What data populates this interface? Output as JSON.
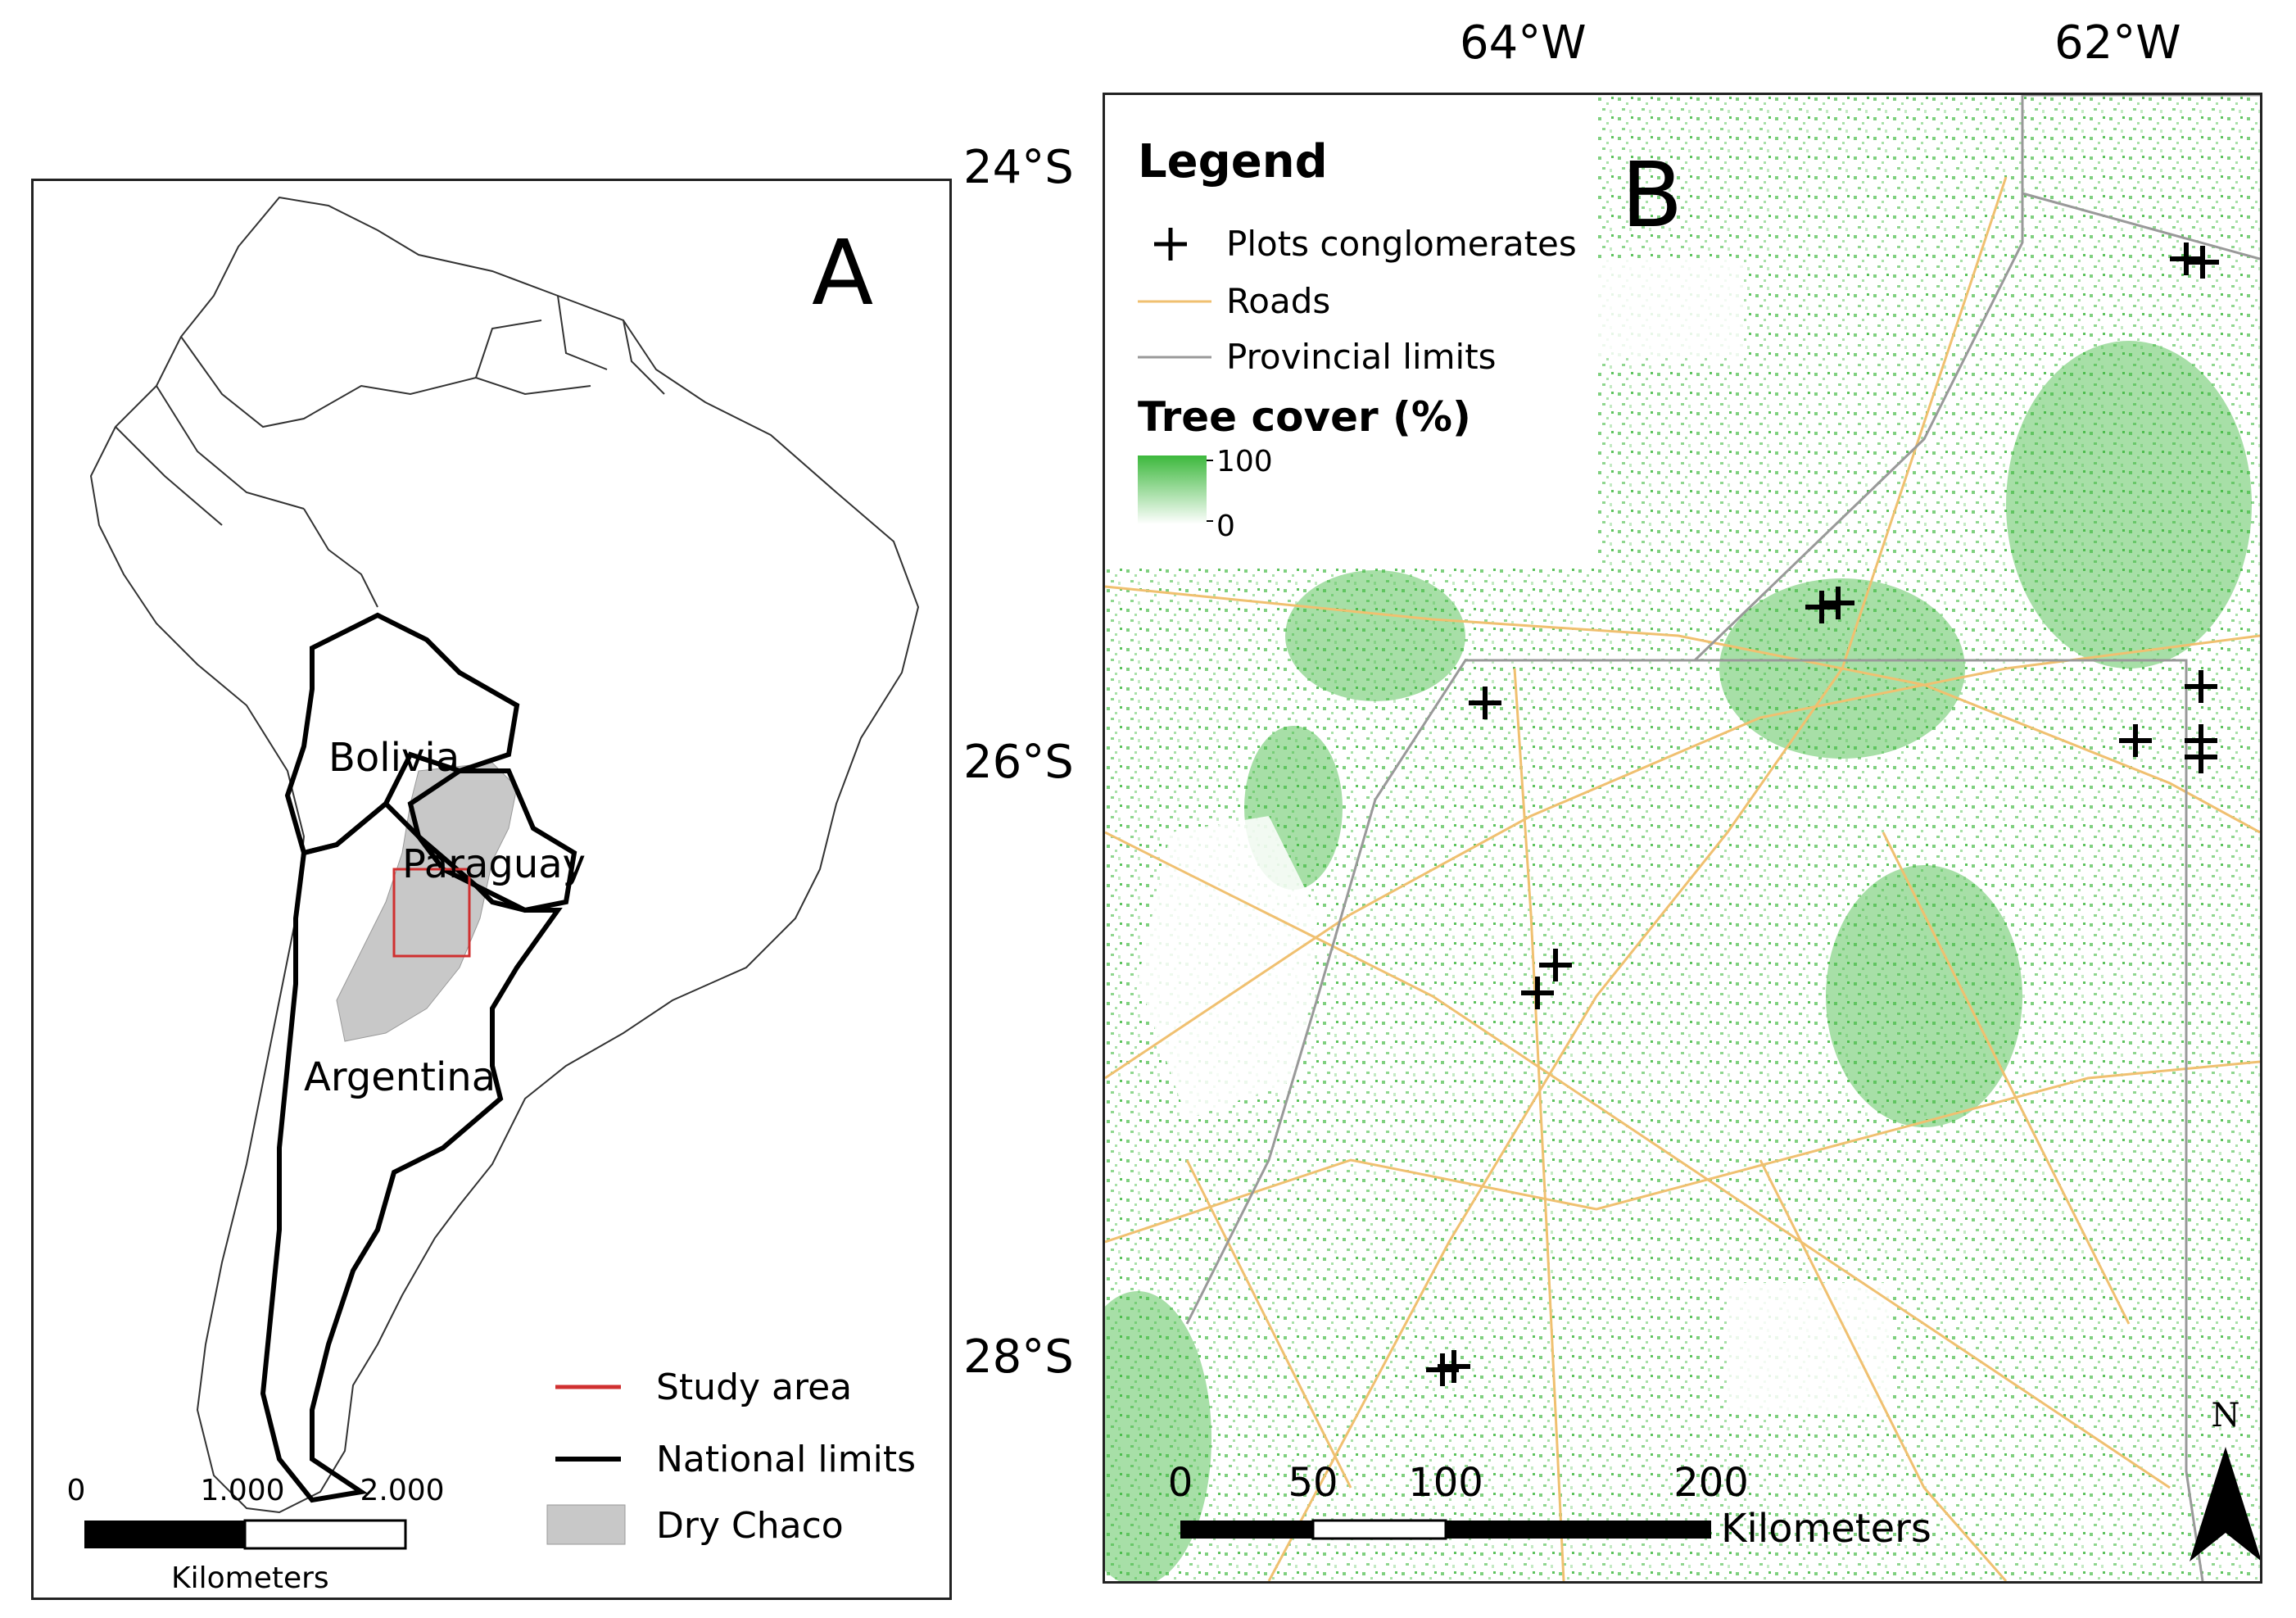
{
  "panel_a": {
    "letter": "A",
    "countries": [
      "Bolivia",
      "Paraguay",
      "Argentina"
    ],
    "legend": {
      "items": [
        {
          "label": "Study area",
          "color": "#d03030"
        },
        {
          "label": "National limits",
          "color": "#000000"
        },
        {
          "label": "Dry Chaco",
          "color": "#c8c8c8"
        }
      ]
    },
    "scalebar": {
      "ticks": [
        "0",
        "1.000",
        "2.000"
      ],
      "unit": "Kilometers"
    }
  },
  "panel_b": {
    "letter": "B",
    "legend": {
      "title": "Legend",
      "items": [
        {
          "label": "Plots conglomerates",
          "symbol": "cross-icon"
        },
        {
          "label": "Roads",
          "color": "#f0c070"
        },
        {
          "label": "Provincial limits",
          "color": "#999999"
        }
      ],
      "ramp_title": "Tree cover (%)",
      "ramp_max": "100",
      "ramp_min": "0"
    },
    "lon_labels": [
      "64°W",
      "62°W"
    ],
    "lat_labels": [
      "24°S",
      "26°S",
      "28°S"
    ],
    "scalebar": {
      "ticks": [
        "0",
        "50",
        "100",
        "200"
      ],
      "unit": "Kilometers"
    },
    "north": "N",
    "colors": {
      "tree": "#3cb83c",
      "road": "#f0c070",
      "province": "#999999"
    }
  }
}
